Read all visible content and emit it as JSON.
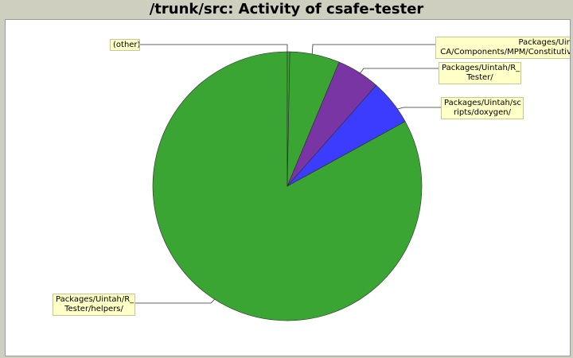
{
  "title": "/trunk/src: Activity of csafe-tester",
  "chart_data": {
    "type": "pie",
    "slices": [
      {
        "label": "Packages/Uintah/R_\nTester/helpers/",
        "value": 83.0,
        "color": "#3aa532"
      },
      {
        "label": "(other)",
        "value": 0.3,
        "color": "#3aa532"
      },
      {
        "label": "Packages/Uintah/CCA/Components/MPM/Constitutive",
        "value": 6.0,
        "color": "#3aa532"
      },
      {
        "label": "Packages/Uintah/R_\nTester/",
        "value": 5.2,
        "color": "#7a35a5"
      },
      {
        "label": "Packages/Uintah/sc\nripts/doxygen/",
        "value": 5.5,
        "color": "#3c3cff"
      }
    ]
  },
  "labels": {
    "other": "(other)",
    "mpm": "Packages/Uin\nCA/Components/MPM/Constitutiv",
    "rtester": "Packages/Uintah/R_\nTester/",
    "doxygen": "Packages/Uintah/sc\nripts/doxygen/",
    "helpers": "Packages/Uintah/R_\nTester/helpers/"
  }
}
